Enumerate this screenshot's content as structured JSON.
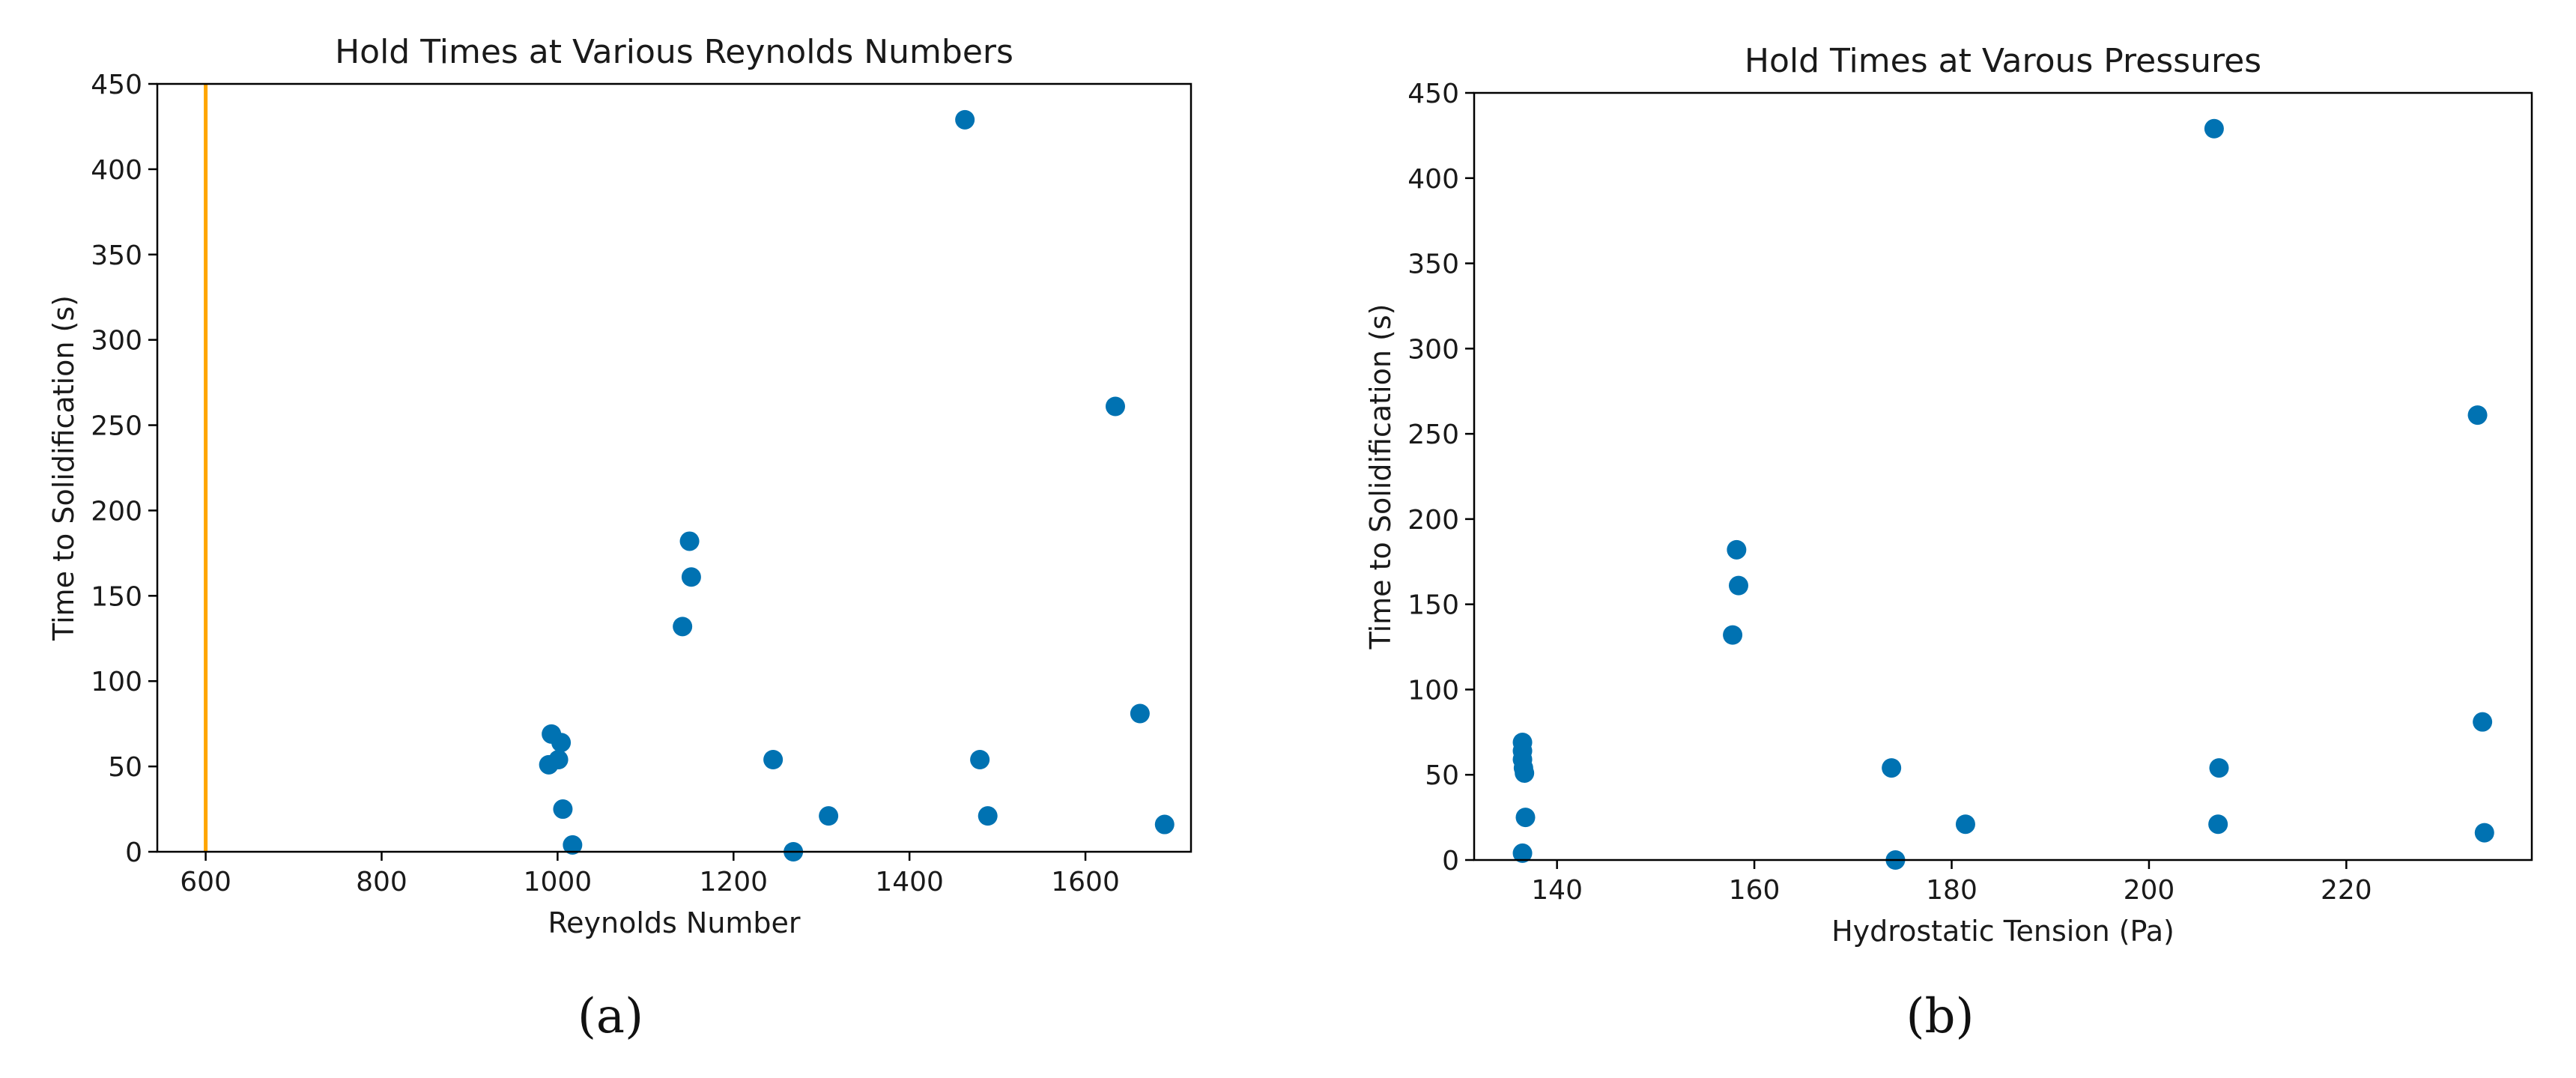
{
  "chart_data": [
    {
      "type": "scatter",
      "title": "Hold Times at Various Reynolds Numbers",
      "xlabel": "Reynolds Number",
      "ylabel": "Time to Solidification (s)",
      "xlim": [
        545,
        1720
      ],
      "ylim": [
        0,
        450
      ],
      "xticks": [
        600,
        800,
        1000,
        1200,
        1400,
        1600
      ],
      "yticks": [
        0,
        50,
        100,
        150,
        200,
        250,
        300,
        350,
        400,
        450
      ],
      "grid": false,
      "marker_color": "#0072b2",
      "vline": {
        "x": 600,
        "color": "#ffa500"
      },
      "points": [
        {
          "x": 993,
          "y": 69
        },
        {
          "x": 1004,
          "y": 64
        },
        {
          "x": 1001,
          "y": 54
        },
        {
          "x": 990,
          "y": 51
        },
        {
          "x": 1006,
          "y": 25
        },
        {
          "x": 1017,
          "y": 4
        },
        {
          "x": 1142,
          "y": 132
        },
        {
          "x": 1150,
          "y": 182
        },
        {
          "x": 1152,
          "y": 161
        },
        {
          "x": 1245,
          "y": 54
        },
        {
          "x": 1268,
          "y": 0
        },
        {
          "x": 1308,
          "y": 21
        },
        {
          "x": 1463,
          "y": 429
        },
        {
          "x": 1480,
          "y": 54
        },
        {
          "x": 1489,
          "y": 21
        },
        {
          "x": 1634,
          "y": 261
        },
        {
          "x": 1662,
          "y": 81
        },
        {
          "x": 1690,
          "y": 16
        }
      ],
      "caption": "(a)"
    },
    {
      "type": "scatter",
      "title": "Hold Times at Varous Pressures",
      "xlabel": "Hydrostatic Tension (Pa)",
      "ylabel": "Time to Solidification (s)",
      "xlim": [
        131.6,
        238.8
      ],
      "ylim": [
        0,
        450
      ],
      "xticks": [
        140,
        160,
        180,
        200,
        220
      ],
      "yticks": [
        0,
        50,
        100,
        150,
        200,
        250,
        300,
        350,
        400,
        450
      ],
      "grid": false,
      "marker_color": "#0072b2",
      "points": [
        {
          "x": 136.5,
          "y": 69
        },
        {
          "x": 136.5,
          "y": 64
        },
        {
          "x": 136.5,
          "y": 59
        },
        {
          "x": 136.6,
          "y": 54
        },
        {
          "x": 136.7,
          "y": 51
        },
        {
          "x": 136.8,
          "y": 25
        },
        {
          "x": 136.5,
          "y": 4
        },
        {
          "x": 157.8,
          "y": 132
        },
        {
          "x": 158.2,
          "y": 182
        },
        {
          "x": 158.4,
          "y": 161
        },
        {
          "x": 173.9,
          "y": 54
        },
        {
          "x": 174.3,
          "y": 0
        },
        {
          "x": 181.4,
          "y": 21
        },
        {
          "x": 206.6,
          "y": 429
        },
        {
          "x": 207.1,
          "y": 54
        },
        {
          "x": 207.0,
          "y": 21
        },
        {
          "x": 233.3,
          "y": 261
        },
        {
          "x": 233.8,
          "y": 81
        },
        {
          "x": 234.0,
          "y": 16
        }
      ],
      "caption": "(b)"
    }
  ]
}
